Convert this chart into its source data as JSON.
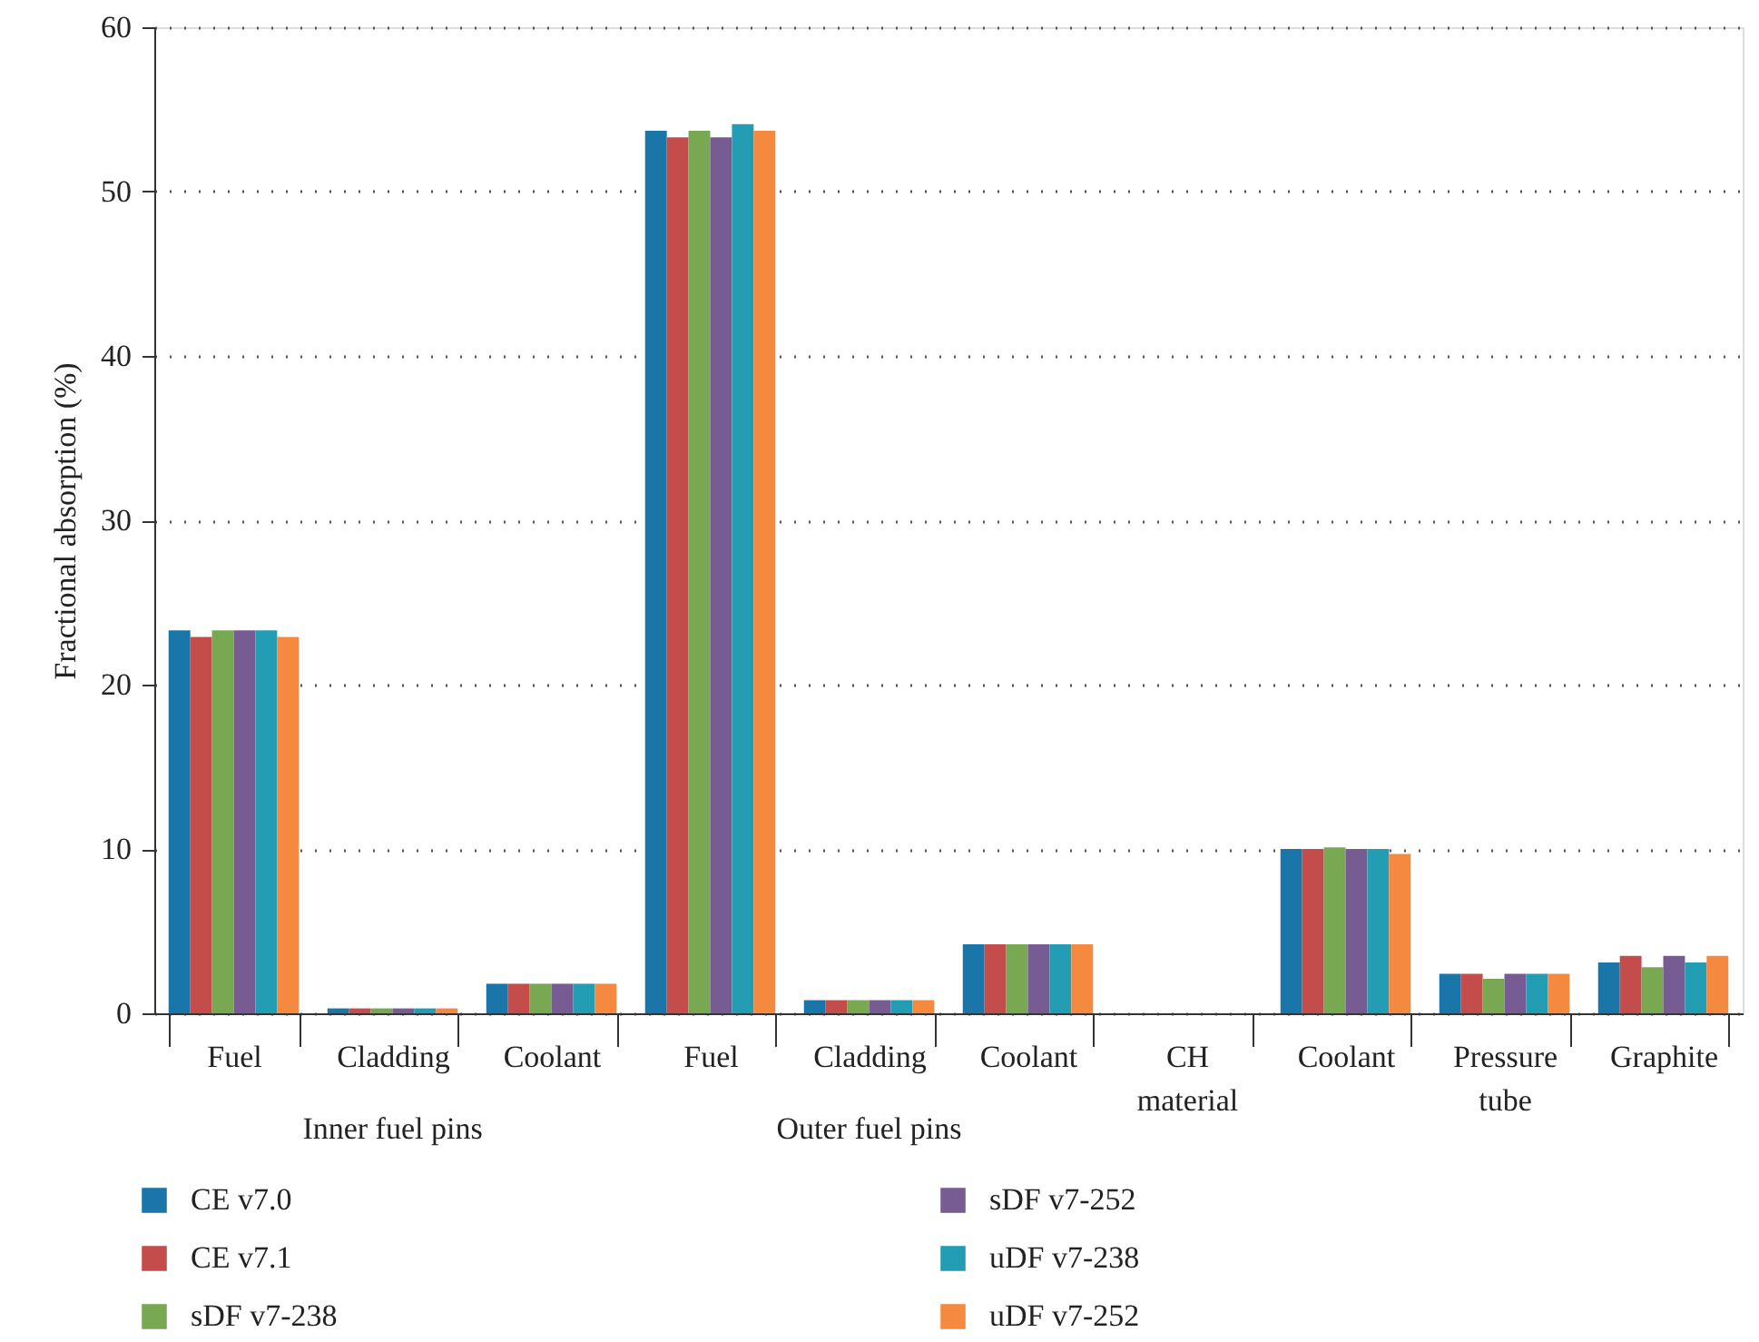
{
  "chart_data": {
    "type": "bar",
    "ylabel": "Fractional absorption (%)",
    "categories": [
      "Fuel",
      "Cladding",
      "Coolant",
      "Fuel",
      "Cladding",
      "Coolant",
      "CH material",
      "Coolant",
      "Pressure tube",
      "Graphite"
    ],
    "series": [
      {
        "name": "CE v7.0",
        "color": "#1a75a8",
        "values": [
          23.3,
          0.3,
          1.8,
          53.7,
          0.8,
          4.2,
          null,
          10.0,
          2.4,
          3.1
        ]
      },
      {
        "name": "CE v7.1",
        "color": "#c44d4b",
        "values": [
          22.9,
          0.3,
          1.8,
          53.3,
          0.8,
          4.2,
          null,
          10.0,
          2.4,
          3.5
        ]
      },
      {
        "name": "sDF v7-238",
        "color": "#79a853",
        "values": [
          23.3,
          0.3,
          1.8,
          53.7,
          0.8,
          4.2,
          null,
          10.1,
          2.1,
          2.8
        ]
      },
      {
        "name": "sDF v7-252",
        "color": "#775b93",
        "values": [
          23.3,
          0.3,
          1.8,
          53.3,
          0.8,
          4.2,
          null,
          10.0,
          2.4,
          3.5
        ]
      },
      {
        "name": "uDF v7-238",
        "color": "#239db4",
        "values": [
          23.3,
          0.3,
          1.8,
          54.1,
          0.8,
          4.2,
          null,
          10.0,
          2.4,
          3.1
        ]
      },
      {
        "name": "uDF v7-252",
        "color": "#f4893f",
        "values": [
          22.9,
          0.3,
          1.8,
          53.7,
          0.8,
          4.2,
          null,
          9.7,
          2.4,
          3.5
        ]
      }
    ],
    "ylim": [
      0,
      60
    ],
    "yticks": [
      0,
      10,
      20,
      30,
      40,
      50,
      60
    ],
    "grid": "y",
    "legend": "bottom",
    "annotations": [
      "Inner fuel pins",
      "Outer fuel pins"
    ]
  }
}
